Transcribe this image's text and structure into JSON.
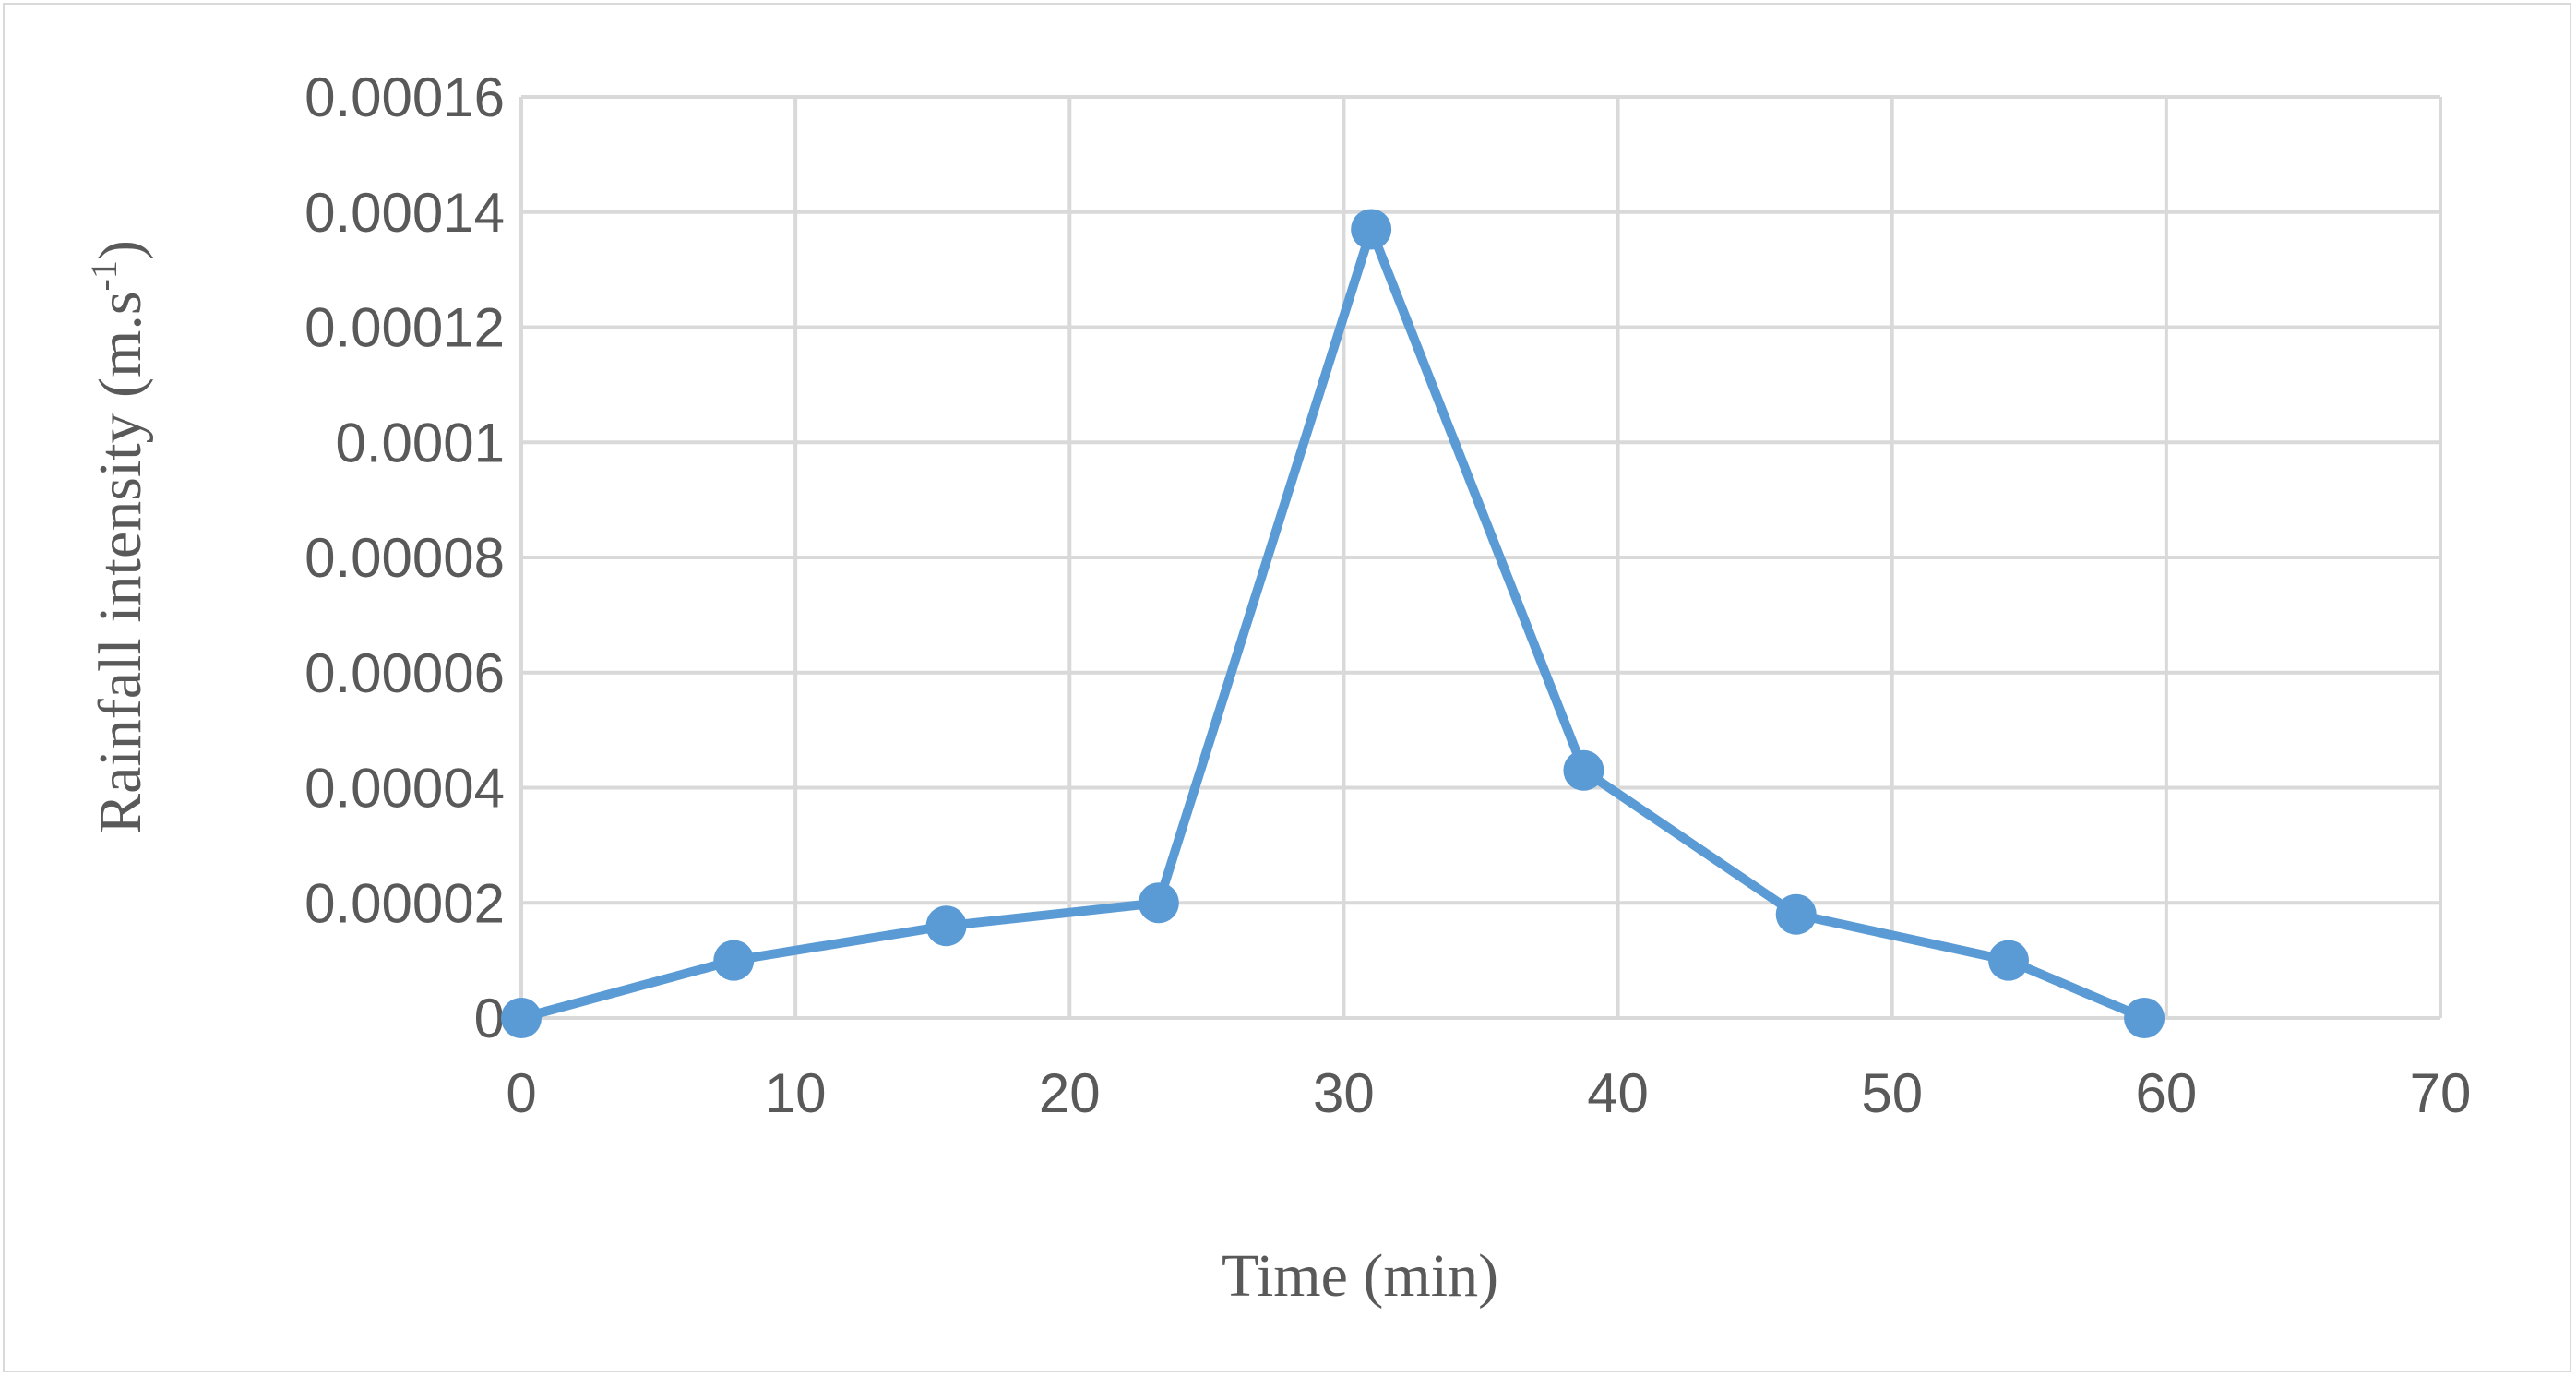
{
  "chart_data": {
    "type": "line",
    "xlabel": "Time (min)",
    "ylabel_main": "Rainfall intensity (m.s",
    "ylabel_sup": "-1",
    "ylabel_close": ")",
    "xlim": [
      0,
      70
    ],
    "ylim": [
      0,
      0.00016
    ],
    "x_ticks": [
      0,
      10,
      20,
      30,
      40,
      50,
      60,
      70
    ],
    "x_tick_labels": [
      "0",
      "10",
      "20",
      "30",
      "40",
      "50",
      "60",
      "70"
    ],
    "y_ticks": [
      0,
      2e-05,
      4e-05,
      6e-05,
      8e-05,
      0.0001,
      0.00012,
      0.00014,
      0.00016
    ],
    "y_tick_labels": [
      "0",
      "0.00002",
      "0.00004",
      "0.00006",
      "0.00008",
      "0.0001",
      "0.00012",
      "0.00014",
      "0.00016"
    ],
    "grid": true,
    "legend": false,
    "series": [
      {
        "color": "#5b9bd5",
        "x": [
          0,
          7.75,
          15.5,
          23.25,
          31,
          38.75,
          46.5,
          54.25,
          59.2
        ],
        "y": [
          0,
          1e-05,
          1.6e-05,
          2e-05,
          0.000137,
          4.3e-05,
          1.8e-05,
          1e-05,
          0
        ]
      }
    ]
  },
  "colors": {
    "grid": "#d9d9d9",
    "text": "#595959",
    "series": "#5b9bd5"
  }
}
